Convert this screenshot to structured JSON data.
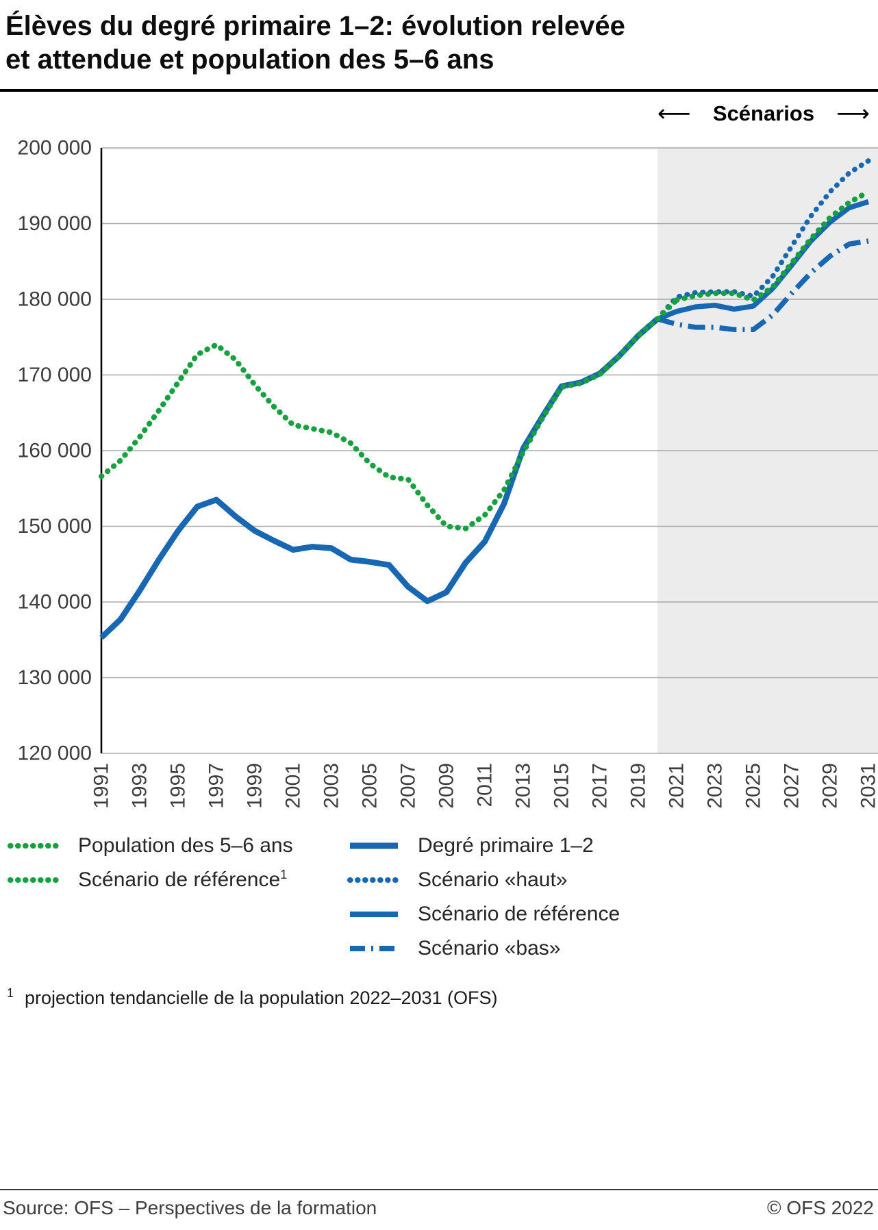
{
  "title": {
    "line1": "Élèves du degré primaire 1–2: évolution relevée",
    "line2": "et attendue et population des 5–6 ans"
  },
  "chart": {
    "scenarios_label": "Scénarios"
  },
  "chart_data": {
    "type": "line",
    "title": "Élèves du degré primaire 1–2: évolution relevée et attendue et population des 5–6 ans",
    "x_range": [
      1991,
      2031
    ],
    "x_tick_labels": [
      "1991",
      "1993",
      "1995",
      "1997",
      "1999",
      "2001",
      "2003",
      "2005",
      "2007",
      "2009",
      "2011",
      "2013",
      "2015",
      "2017",
      "2019",
      "2021",
      "2023",
      "2025",
      "2027",
      "2029",
      "2031"
    ],
    "ylim": [
      120000,
      200000
    ],
    "y_ticks": [
      120000,
      130000,
      140000,
      150000,
      160000,
      170000,
      180000,
      190000,
      200000
    ],
    "y_tick_labels": [
      "120 000",
      "130 000",
      "140 000",
      "150 000",
      "160 000",
      "170 000",
      "180 000",
      "190 000",
      "200 000"
    ],
    "grid": true,
    "legend_position": "bottom",
    "scenario_region_start": 2020,
    "colors": {
      "green": "#15a13d",
      "blue": "#1767b2",
      "grid": "#a8a8a8",
      "axis": "#000000",
      "scenario_shade": "#ececec"
    },
    "series": [
      {
        "id": "degre-primaire-observe",
        "name": "Degré primaire 1–2",
        "color": "blue",
        "style": "solid",
        "width": 8.5,
        "x_start": 1991,
        "values": [
          135300,
          137700,
          141500,
          145600,
          149400,
          152600,
          153500,
          151300,
          149400,
          148100,
          146900,
          147300,
          147100,
          145600,
          145300,
          144900,
          142000,
          140100,
          141300,
          145200,
          148000,
          153000,
          160300,
          164500,
          168500,
          169000,
          170200,
          172500,
          175200,
          177400
        ]
      },
      {
        "id": "scenario-bas",
        "name": "Scénario «bas»",
        "color": "blue",
        "style": "dashdot",
        "width": 7.5,
        "x_start": 2020,
        "values": [
          177400,
          176700,
          176300,
          176300,
          176000,
          176000,
          177900,
          180800,
          183500,
          185700,
          187300,
          187700
        ]
      },
      {
        "id": "scenario-reference-eleves",
        "name": "Scénario de référence",
        "color": "blue",
        "style": "solid",
        "width": 7.5,
        "x_start": 2020,
        "values": [
          177400,
          178400,
          179000,
          179200,
          178700,
          179100,
          181400,
          184500,
          187700,
          190200,
          192100,
          192900
        ]
      },
      {
        "id": "scenario-haut",
        "name": "Scénario «haut»",
        "color": "blue",
        "style": "dotted",
        "width": 7.5,
        "x_start": 2020,
        "values": [
          177400,
          180300,
          180900,
          181000,
          181000,
          180400,
          183000,
          187000,
          191000,
          194200,
          196700,
          198300
        ]
      },
      {
        "id": "population-5-6-ans",
        "name": "Population des 5–6 ans",
        "color": "green",
        "style": "dotted",
        "width": 8,
        "x_start": 1991,
        "values": [
          156600,
          158700,
          161800,
          165300,
          169000,
          172700,
          174000,
          172000,
          168700,
          165800,
          163400,
          162900,
          162400,
          161000,
          158300,
          156500,
          156200,
          152800,
          150000,
          149700,
          151500,
          154800,
          159800,
          164300,
          168400,
          168900,
          170100,
          172500,
          175200,
          177400,
          179900
        ]
      },
      {
        "id": "scenario-reference-population",
        "name": "Scénario de référence (population)",
        "color": "green",
        "style": "dotted",
        "width": 8,
        "x_start": 2021,
        "values": [
          179900,
          180500,
          180800,
          180800,
          179900,
          181600,
          184800,
          188000,
          190800,
          192800,
          194200
        ]
      }
    ]
  },
  "legend": {
    "left": [
      {
        "label": "Population des 5–6 ans",
        "color": "green",
        "style": "dotted"
      },
      {
        "label": "Scénario de référence",
        "sup": "1",
        "color": "green",
        "style": "dotted"
      }
    ],
    "right": [
      {
        "label": "Degré primaire 1–2",
        "color": "blue",
        "style": "solid"
      },
      {
        "label": "Scénario «haut»",
        "color": "blue",
        "style": "dotted"
      },
      {
        "label": "Scénario de référence",
        "color": "blue",
        "style": "solid"
      },
      {
        "label": "Scénario «bas»",
        "color": "blue",
        "style": "dashdot"
      }
    ]
  },
  "footnote": {
    "marker": "1",
    "text": "projection tendancielle de la population 2022–2031 (OFS)"
  },
  "footer": {
    "source": "Source: OFS – Perspectives de la formation",
    "copyright": "© OFS 2022"
  }
}
